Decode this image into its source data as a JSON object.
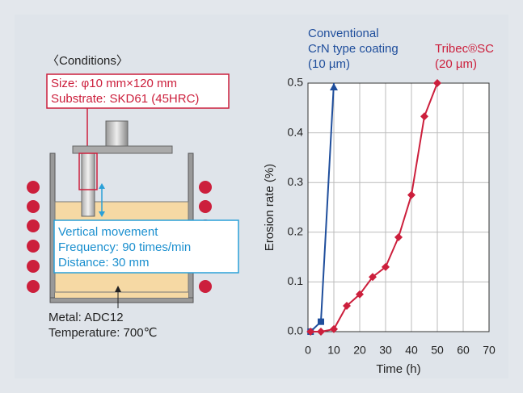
{
  "diagram": {
    "conditions_title": "〈Conditions〉",
    "specimen_lines": [
      "Size: φ10 mm×120 mm",
      "Substrate: SKD61 (45HRC)"
    ],
    "movement_lines": [
      "Vertical movement",
      "Frequency: 90 times/min",
      "Distance: 30 mm"
    ],
    "metal_lines": [
      "Metal: ADC12",
      "Temperature: 700℃"
    ]
  },
  "chart_data": {
    "type": "line",
    "x_label": "Time (h)",
    "y_label": "Erosion rate (%)",
    "xlim": [
      0,
      70
    ],
    "xticks": [
      0,
      10,
      20,
      30,
      40,
      50,
      60,
      70
    ],
    "ylim": [
      0,
      0.5
    ],
    "yticks": [
      {
        "value": 0,
        "label": "0.0"
      },
      0.1,
      0.2,
      0.3,
      0.4,
      0.5
    ],
    "grid": true,
    "series": [
      {
        "name_lines": [
          "Conventional",
          "CrN type coating",
          "(10 µm)"
        ],
        "color": "#1f4e9c",
        "marker": "square",
        "x": [
          1,
          5,
          10
        ],
        "values": [
          0,
          0.02,
          0.5
        ]
      },
      {
        "name_lines": [
          "Tribec®SC",
          "(20 µm)"
        ],
        "color": "#cc1f3c",
        "marker": "diamond",
        "x": [
          1,
          5,
          10,
          15,
          20,
          25,
          30,
          35,
          40,
          45,
          50
        ],
        "values": [
          0,
          0,
          0.005,
          0.052,
          0.075,
          0.11,
          0.13,
          0.19,
          0.275,
          0.433,
          0.5
        ]
      }
    ]
  }
}
